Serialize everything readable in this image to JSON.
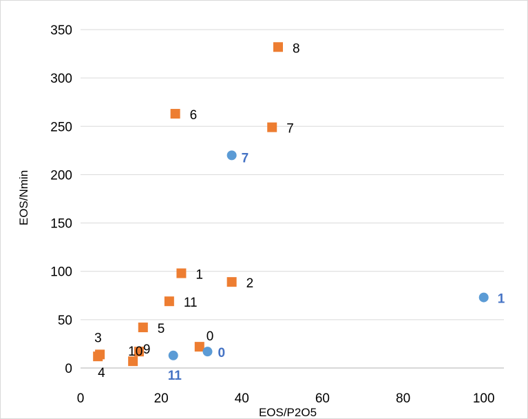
{
  "chart_data": {
    "type": "scatter",
    "title": "",
    "xlabel": "EOS/P2O5",
    "ylabel": "EOS/Nmin",
    "xlim": [
      0,
      105
    ],
    "ylim": [
      0,
      350
    ],
    "x_ticks": [
      0,
      20,
      40,
      60,
      80,
      100
    ],
    "y_ticks": [
      0,
      50,
      100,
      150,
      200,
      250,
      300,
      350
    ],
    "x_tick_labels": [
      "0",
      "20",
      "40",
      "60",
      "80",
      "100"
    ],
    "y_tick_labels": [
      "0",
      "50",
      "100",
      "150",
      "200",
      "250",
      "300",
      "350"
    ],
    "grid": "horizontal",
    "legend": "none",
    "series": [
      {
        "marker": "square",
        "color": "#ed7d31",
        "label_color": "#000000",
        "label_bold": false,
        "points": [
          {
            "x": 29.5,
            "y": 22,
            "label": "0"
          },
          {
            "x": 25,
            "y": 98,
            "label": "1"
          },
          {
            "x": 37.5,
            "y": 89,
            "label": "2"
          },
          {
            "x": 4.8,
            "y": 14,
            "label": "3"
          },
          {
            "x": 4.3,
            "y": 12,
            "label": "4"
          },
          {
            "x": 15.5,
            "y": 42,
            "label": "5"
          },
          {
            "x": 23.5,
            "y": 263,
            "label": "6"
          },
          {
            "x": 47.5,
            "y": 249,
            "label": "7"
          },
          {
            "x": 49,
            "y": 332,
            "label": "8"
          },
          {
            "x": 14.5,
            "y": 17,
            "label": "9"
          },
          {
            "x": 13,
            "y": 7,
            "label": "10"
          },
          {
            "x": 22,
            "y": 69,
            "label": "11"
          }
        ]
      },
      {
        "marker": "circle",
        "color": "#5b9bd5",
        "label_color": "#4472c4",
        "label_bold": true,
        "points": [
          {
            "x": 31.5,
            "y": 17,
            "label": "0"
          },
          {
            "x": 100,
            "y": 73,
            "label": "1"
          },
          {
            "x": 37.5,
            "y": 220,
            "label": "7"
          },
          {
            "x": 23,
            "y": 13,
            "label": "11"
          }
        ]
      }
    ]
  }
}
